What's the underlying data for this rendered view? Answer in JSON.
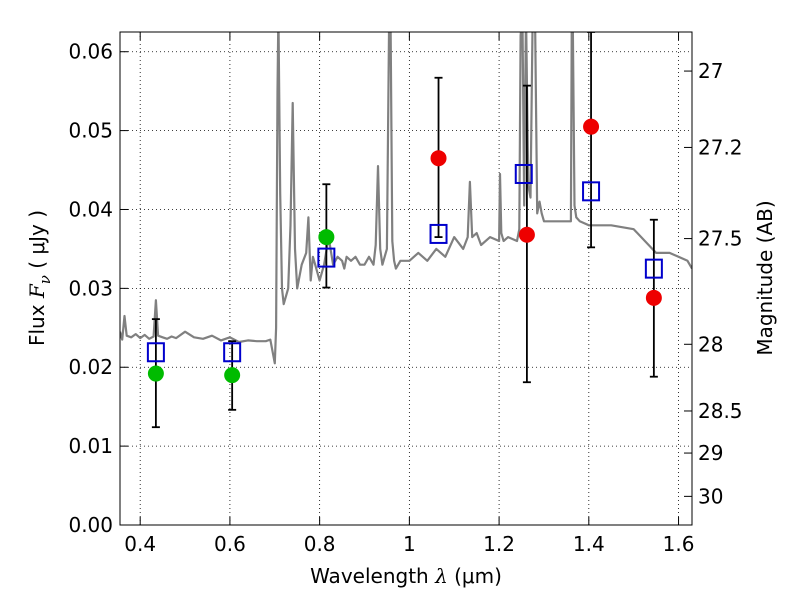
{
  "chart_data": {
    "type": "scatter",
    "title": "",
    "xlabel": {
      "prefix": "Wavelength  ",
      "symbol": "λ",
      "unit": " (μm)"
    },
    "ylabel": {
      "prefix": "Flux  ",
      "symbol": "F",
      "subscript": "ν",
      "unit": "  ( μJy )"
    },
    "ylabel_right": "Magnitude (AB)",
    "xlim": [
      0.355,
      1.63
    ],
    "ylim": [
      0.0,
      0.0625
    ],
    "grid": true,
    "xticks": [
      {
        "value": 0.4,
        "label": "0.4"
      },
      {
        "value": 0.6,
        "label": "0.6"
      },
      {
        "value": 0.8,
        "label": "0.8"
      },
      {
        "value": 1.0,
        "label": "1"
      },
      {
        "value": 1.2,
        "label": "1.2"
      },
      {
        "value": 1.4,
        "label": "1.4"
      },
      {
        "value": 1.6,
        "label": "1.6"
      }
    ],
    "yticks": [
      {
        "value": 0.0,
        "label": "0.00"
      },
      {
        "value": 0.01,
        "label": "0.01"
      },
      {
        "value": 0.02,
        "label": "0.02"
      },
      {
        "value": 0.03,
        "label": "0.03"
      },
      {
        "value": 0.04,
        "label": "0.04"
      },
      {
        "value": 0.05,
        "label": "0.05"
      },
      {
        "value": 0.06,
        "label": "0.06"
      }
    ],
    "right_ticks": [
      {
        "mag": 27.0,
        "label": "27"
      },
      {
        "mag": 27.2,
        "label": "27.2"
      },
      {
        "mag": 27.5,
        "label": "27.5"
      },
      {
        "mag": 28.0,
        "label": "28"
      },
      {
        "mag": 28.5,
        "label": "28.5"
      },
      {
        "mag": 29.0,
        "label": "29"
      },
      {
        "mag": 30.0,
        "label": "30"
      }
    ],
    "series": [
      {
        "kind": "line",
        "color": "#808080",
        "x": [
          0.355,
          0.36,
          0.365,
          0.37,
          0.38,
          0.39,
          0.4,
          0.41,
          0.42,
          0.43,
          0.435,
          0.44,
          0.45,
          0.46,
          0.47,
          0.48,
          0.5,
          0.52,
          0.54,
          0.56,
          0.58,
          0.6,
          0.62,
          0.64,
          0.66,
          0.68,
          0.69,
          0.7,
          0.703,
          0.706,
          0.708,
          0.712,
          0.716,
          0.72,
          0.73,
          0.735,
          0.74,
          0.745,
          0.75,
          0.76,
          0.77,
          0.775,
          0.78,
          0.785,
          0.79,
          0.8,
          0.81,
          0.82,
          0.83,
          0.84,
          0.85,
          0.855,
          0.86,
          0.87,
          0.88,
          0.89,
          0.9,
          0.91,
          0.92,
          0.925,
          0.93,
          0.935,
          0.94,
          0.95,
          0.955,
          0.958,
          0.962,
          0.966,
          0.97,
          0.98,
          1.0,
          1.02,
          1.04,
          1.06,
          1.08,
          1.1,
          1.12,
          1.13,
          1.135,
          1.14,
          1.15,
          1.16,
          1.18,
          1.2,
          1.202,
          1.205,
          1.21,
          1.22,
          1.24,
          1.245,
          1.248,
          1.252,
          1.256,
          1.26,
          1.265,
          1.27,
          1.275,
          1.28,
          1.285,
          1.29,
          1.295,
          1.3,
          1.32,
          1.34,
          1.36,
          1.362,
          1.364,
          1.368,
          1.372,
          1.38,
          1.4,
          1.45,
          1.5,
          1.55,
          1.58,
          1.6,
          1.62,
          1.63
        ],
        "y": [
          0.0245,
          0.0235,
          0.0265,
          0.024,
          0.0238,
          0.0242,
          0.0237,
          0.0241,
          0.0236,
          0.0239,
          0.0285,
          0.024,
          0.0238,
          0.0236,
          0.0239,
          0.0237,
          0.0245,
          0.0238,
          0.0236,
          0.024,
          0.0234,
          0.0238,
          0.0232,
          0.0234,
          0.0233,
          0.0233,
          0.0235,
          0.0205,
          0.025,
          0.055,
          0.065,
          0.042,
          0.03,
          0.028,
          0.03,
          0.038,
          0.0535,
          0.035,
          0.03,
          0.033,
          0.0345,
          0.039,
          0.031,
          0.034,
          0.033,
          0.031,
          0.033,
          0.0365,
          0.033,
          0.034,
          0.0335,
          0.0325,
          0.034,
          0.0335,
          0.034,
          0.033,
          0.033,
          0.034,
          0.033,
          0.0355,
          0.0455,
          0.035,
          0.033,
          0.035,
          0.065,
          0.065,
          0.036,
          0.0335,
          0.0325,
          0.0335,
          0.0335,
          0.0345,
          0.0335,
          0.035,
          0.034,
          0.0365,
          0.035,
          0.0365,
          0.0435,
          0.0365,
          0.037,
          0.0355,
          0.0365,
          0.036,
          0.0445,
          0.037,
          0.036,
          0.0365,
          0.036,
          0.0375,
          0.062,
          0.065,
          0.0405,
          0.065,
          0.043,
          0.0415,
          0.065,
          0.065,
          0.0395,
          0.041,
          0.0395,
          0.0385,
          0.0385,
          0.0385,
          0.0385,
          0.065,
          0.065,
          0.0405,
          0.039,
          0.0385,
          0.038,
          0.038,
          0.0375,
          0.0345,
          0.0345,
          0.034,
          0.0335,
          0.0325
        ]
      },
      {
        "kind": "squares",
        "color": "#0000cc",
        "x": [
          0.435,
          0.605,
          0.815,
          1.065,
          1.255,
          1.405,
          1.545
        ],
        "y": [
          0.0219,
          0.0219,
          0.0339,
          0.0369,
          0.0445,
          0.0423,
          0.0325
        ]
      },
      {
        "kind": "points",
        "color": "#00bb00",
        "x": [
          0.435,
          0.605,
          0.815
        ],
        "y": [
          0.0192,
          0.019,
          0.0365
        ],
        "yerr_low": [
          0.0124,
          0.0146,
          0.0301
        ],
        "yerr_high": [
          0.0261,
          0.0233,
          0.0432
        ]
      },
      {
        "kind": "points",
        "color": "#ee0000",
        "x": [
          1.065,
          1.262,
          1.405,
          1.545
        ],
        "y": [
          0.0465,
          0.0368,
          0.0505,
          0.0288
        ],
        "yerr_low": [
          0.0365,
          0.0181,
          0.0352,
          0.0188
        ],
        "yerr_high": [
          0.0567,
          0.0557,
          0.0625,
          0.0387
        ]
      }
    ]
  }
}
